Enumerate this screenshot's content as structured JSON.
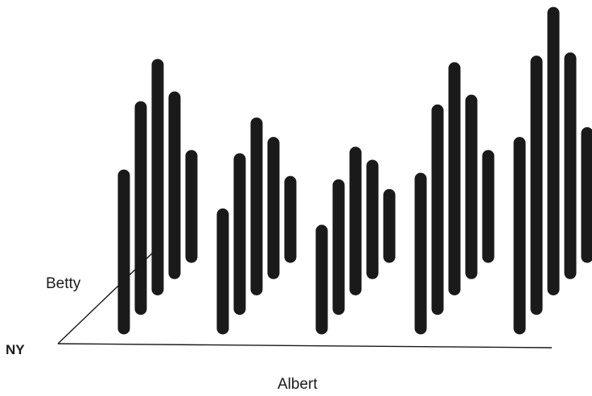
{
  "chart_data": {
    "type": "bar",
    "projection": "3d-perspective",
    "origin_label": "NY",
    "xlabel": "Albert",
    "depth_label": "Betty",
    "bar_color": "#1a1a1a",
    "groups": [
      {
        "bars": [
          {
            "base": 0.99,
            "top": 0.52
          },
          {
            "base": 0.93,
            "top": 0.31
          },
          {
            "base": 0.87,
            "top": 0.18
          },
          {
            "base": 0.82,
            "top": 0.28
          },
          {
            "base": 0.77,
            "top": 0.46
          }
        ]
      },
      {
        "bars": [
          {
            "base": 0.99,
            "top": 0.64
          },
          {
            "base": 0.93,
            "top": 0.47
          },
          {
            "base": 0.87,
            "top": 0.36
          },
          {
            "base": 0.82,
            "top": 0.42
          },
          {
            "base": 0.77,
            "top": 0.54
          }
        ]
      },
      {
        "bars": [
          {
            "base": 0.99,
            "top": 0.69
          },
          {
            "base": 0.93,
            "top": 0.55
          },
          {
            "base": 0.87,
            "top": 0.45
          },
          {
            "base": 0.82,
            "top": 0.49
          },
          {
            "base": 0.77,
            "top": 0.58
          }
        ]
      },
      {
        "bars": [
          {
            "base": 0.99,
            "top": 0.53
          },
          {
            "base": 0.93,
            "top": 0.32
          },
          {
            "base": 0.87,
            "top": 0.19
          },
          {
            "base": 0.82,
            "top": 0.29
          },
          {
            "base": 0.77,
            "top": 0.46
          }
        ]
      },
      {
        "bars": [
          {
            "base": 0.99,
            "top": 0.42
          },
          {
            "base": 0.93,
            "top": 0.17
          },
          {
            "base": 0.87,
            "top": 0.02
          },
          {
            "base": 0.82,
            "top": 0.16
          },
          {
            "base": 0.77,
            "top": 0.39
          }
        ]
      }
    ]
  }
}
